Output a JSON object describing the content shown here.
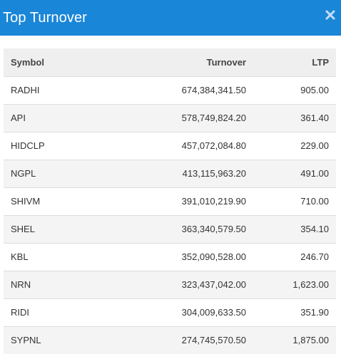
{
  "header": {
    "title": "Top Turnover",
    "close_icon": "close-icon",
    "color": "#1a86d8"
  },
  "table": {
    "columns": [
      "Symbol",
      "Turnover",
      "LTP"
    ],
    "rows": [
      {
        "symbol": "RADHI",
        "turnover": "674,384,341.50",
        "ltp": "905.00"
      },
      {
        "symbol": "API",
        "turnover": "578,749,824.20",
        "ltp": "361.40"
      },
      {
        "symbol": "HIDCLP",
        "turnover": "457,072,084.80",
        "ltp": "229.00"
      },
      {
        "symbol": "NGPL",
        "turnover": "413,115,963.20",
        "ltp": "491.00"
      },
      {
        "symbol": "SHIVM",
        "turnover": "391,010,219.90",
        "ltp": "710.00"
      },
      {
        "symbol": "SHEL",
        "turnover": "363,340,579.50",
        "ltp": "354.10"
      },
      {
        "symbol": "KBL",
        "turnover": "352,090,528.00",
        "ltp": "246.70"
      },
      {
        "symbol": "NRN",
        "turnover": "323,437,042.00",
        "ltp": "1,623.00"
      },
      {
        "symbol": "RIDI",
        "turnover": "304,009,633.50",
        "ltp": "351.90"
      },
      {
        "symbol": "SYPNL",
        "turnover": "274,745,570.50",
        "ltp": "1,875.00"
      }
    ]
  }
}
